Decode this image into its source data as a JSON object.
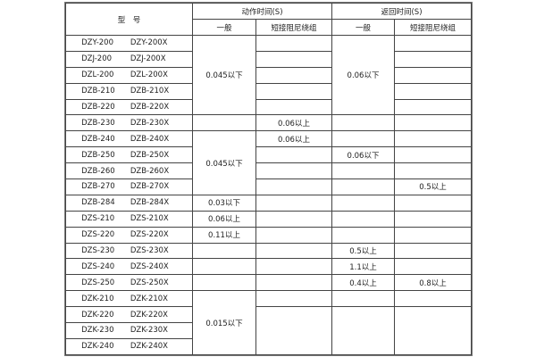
{
  "header": {
    "model": "型　号",
    "action_time": "动作时间(S)",
    "return_time": "返回时间(S)",
    "general": "一般",
    "short_damping": "短接阻尼绕组"
  },
  "rows": [
    {
      "model": [
        "DZY-200",
        "DZY-200X"
      ],
      "action_general": "0.045以下",
      "action_short": "",
      "return_general": "0.06以下",
      "return_short": ""
    },
    {
      "model": [
        "DZJ-200",
        "DZJ-200X"
      ],
      "action_short": "",
      "return_short": ""
    },
    {
      "model": [
        "DZL-200",
        "DZL-200X"
      ],
      "action_short": "",
      "return_short": ""
    },
    {
      "model": [
        "DZB-210",
        "DZB-210X"
      ],
      "action_short": "",
      "return_short": ""
    },
    {
      "model": [
        "DZB-220",
        "DZB-220X"
      ],
      "action_short": "",
      "return_short": ""
    },
    {
      "model": [
        "DZB-230",
        "DZB-230X"
      ],
      "action_general": "",
      "action_short": "0.06以上",
      "return_general": "",
      "return_short": ""
    },
    {
      "model": [
        "DZB-240",
        "DZB-240X"
      ],
      "action_general": "0.045以下",
      "action_short": "0.06以上",
      "return_general": "",
      "return_short": ""
    },
    {
      "model": [
        "DZB-250",
        "DZB-250X"
      ],
      "action_short": "",
      "return_general": "0.06以下",
      "return_short": ""
    },
    {
      "model": [
        "DZB-260",
        "DZB-260X"
      ],
      "action_short": "",
      "return_general": "",
      "return_short": ""
    },
    {
      "model": [
        "DZB-270",
        "DZB-270X"
      ],
      "action_short": "",
      "return_general": "",
      "return_short": "0.5以上"
    },
    {
      "model": [
        "DZB-284",
        "DZB-284X"
      ],
      "action_general": "0.03以下",
      "action_short": "",
      "return_general": "",
      "return_short": ""
    },
    {
      "model": [
        "DZS-210",
        "DZS-210X"
      ],
      "action_general": "0.06以上",
      "action_short": "",
      "return_general": "",
      "return_short": ""
    },
    {
      "model": [
        "DZS-220",
        "DZS-220X"
      ],
      "action_general": "0.11以上",
      "action_short": "",
      "return_general": "",
      "return_short": ""
    },
    {
      "model": [
        "DZS-230",
        "DZS-230X"
      ],
      "action_general": "",
      "action_short": "",
      "return_general": "0.5以上",
      "return_short": ""
    },
    {
      "model": [
        "DZS-240",
        "DZS-240X"
      ],
      "action_general": "",
      "action_short": "",
      "return_general": "1.1以上",
      "return_short": ""
    },
    {
      "model": [
        "DZS-250",
        "DZS-250X"
      ],
      "action_general": "",
      "action_short": "",
      "return_general": "0.4以上",
      "return_short": "0.8以上"
    },
    {
      "model": [
        "DZK-210",
        "DZK-210X"
      ],
      "action_general": "0.015以下",
      "action_short": "",
      "return_general": "",
      "return_short": ""
    },
    {
      "model": [
        "DZK-220",
        "DZK-220X"
      ],
      "action_short": "",
      "return_general": "",
      "return_short": ""
    },
    {
      "model": [
        "DZK-230",
        "DZK-230X"
      ]
    },
    {
      "model": [
        "DZK-240",
        "DZK-240X"
      ]
    }
  ]
}
